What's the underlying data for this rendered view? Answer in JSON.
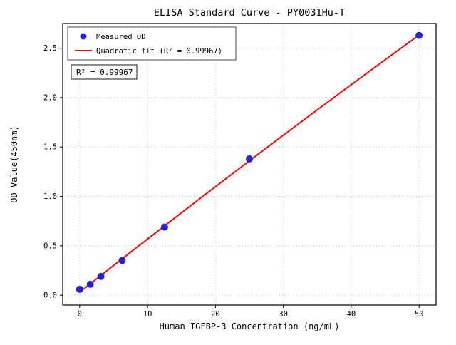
{
  "chart_data": {
    "type": "scatter",
    "title": "ELISA Standard Curve - PY0031Hu-T",
    "xlabel": "Human IGFBP-3 Concentration (ng/mL)",
    "ylabel": "OD Value(450nm)",
    "xlim": [
      -2.5,
      52.5
    ],
    "ylim": [
      -0.1,
      2.75
    ],
    "xticks": [
      0,
      10,
      20,
      30,
      40,
      50
    ],
    "yticks": [
      0.0,
      0.5,
      1.0,
      1.5,
      2.0,
      2.5
    ],
    "grid": true,
    "grid_style": "dotted",
    "legend_position": "upper-left",
    "background_color": "#ffffff",
    "axis_color": "#000000",
    "grid_color": "#b5b5b5",
    "series": [
      {
        "name": "Measured OD",
        "type": "scatter",
        "marker": "circle",
        "color": "#2121d8",
        "x": [
          0,
          1.56,
          3.125,
          6.25,
          12.5,
          25,
          50
        ],
        "y": [
          0.06,
          0.11,
          0.19,
          0.35,
          0.69,
          1.38,
          2.63
        ]
      },
      {
        "name": "Quadratic fit (R² = 0.99967)",
        "type": "line",
        "fit": "quadratic",
        "color": "#ff0000"
      }
    ],
    "annotation": "R² = 0.99967"
  }
}
